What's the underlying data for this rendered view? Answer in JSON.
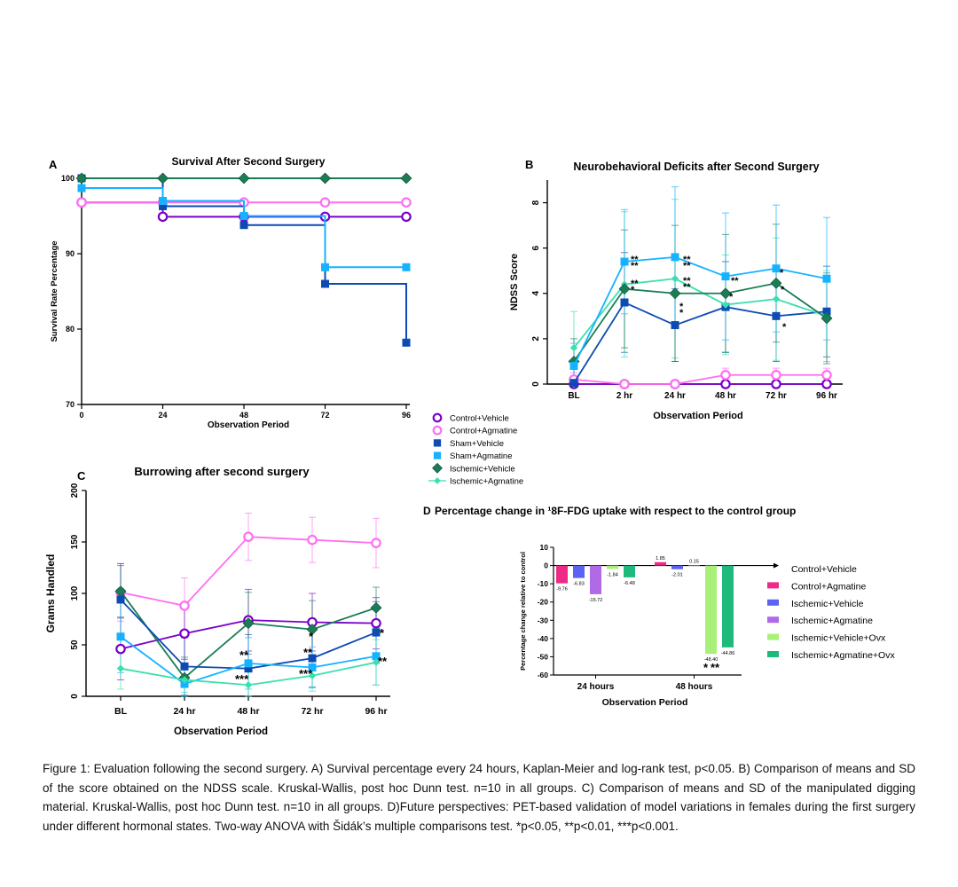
{
  "colors": {
    "control_vehicle": "#7a00c8",
    "control_agmatine": "#ff6ef2",
    "sham_vehicle": "#0d4bb3",
    "sham_agmatine": "#16b2ff",
    "ischemic_vehicle": "#1a7d55",
    "ischemic_agmatine": "#39e0b0",
    "sig_purple": "#9c27b0",
    "sig_pink": "#ff63e6",
    "d_control_agmatine": "#ee2a86",
    "d_ischemic_vehicle": "#5b63f0",
    "d_ischemic_agmatine": "#b16ae6",
    "d_ischemic_vehicle_ovx": "#a8f07a",
    "d_ischemic_agmatine_ovx": "#20b97c"
  },
  "legend": {
    "items": [
      {
        "label": "Control+Vehicle",
        "marker": "circle-open",
        "color": "#7a00c8"
      },
      {
        "label": "Control+Agmatine",
        "marker": "circle-open",
        "color": "#ff6ef2"
      },
      {
        "label": "Sham+Vehicle",
        "marker": "square",
        "color": "#0d4bb3"
      },
      {
        "label": "Sham+Agmatine",
        "marker": "square",
        "color": "#16b2ff"
      },
      {
        "label": "Ischemic+Vehicle",
        "marker": "diamond",
        "color": "#1a7d55"
      },
      {
        "label": "Ischemic+Agmatine",
        "marker": "diamond-small",
        "color": "#39e0b0"
      }
    ]
  },
  "panel_a": {
    "letter": "A",
    "title": "Survival After Second Surgery",
    "ylabel": "Survival Rate Percentage",
    "xlabel": "Observation Period",
    "yticks": [
      "70",
      "80",
      "90",
      "100"
    ],
    "xticks": [
      "0",
      "24",
      "48",
      "72",
      "96"
    ]
  },
  "panel_b": {
    "letter": "B",
    "title": "Neurobehavioral Deficits after Second Surgery",
    "ylabel": "NDSS Score",
    "xlabel": "Observation Period",
    "yticks": [
      "0",
      "2",
      "4",
      "6",
      "8"
    ],
    "xticks": [
      "BL",
      "2 hr",
      "24 hr",
      "48 hr",
      "72 hr",
      "96 hr"
    ]
  },
  "panel_c": {
    "letter": "C",
    "title": "Burrowing after second surgery",
    "ylabel": "Grams Handled",
    "xlabel": "Observation Period",
    "yticks": [
      "0",
      "50",
      "100",
      "150",
      "200"
    ],
    "xticks": [
      "BL",
      "24 hr",
      "48 hr",
      "72 hr",
      "96 hr"
    ]
  },
  "panel_d": {
    "letter": "D",
    "title": "Percentage change in ¹8F-FDG uptake with respect to the control group",
    "ylabel": "Percentage change relative to control",
    "xlabel": "Observation Period",
    "yticks": [
      "10",
      "0",
      "-10",
      "-20",
      "-30",
      "-40",
      "-50",
      "-60"
    ],
    "xticks": [
      "24 hours",
      "48 hours"
    ],
    "legend": [
      {
        "label": "Control+Vehicle",
        "swatch": "arrow"
      },
      {
        "label": "Control+Agmatine",
        "color": "#ee2a86"
      },
      {
        "label": "Ischemic+Vehicle",
        "color": "#5b63f0"
      },
      {
        "label": "Ischemic+Agmatine",
        "color": "#b16ae6"
      },
      {
        "label": "Ischemic+Vehicle+Ovx",
        "color": "#a8f07a"
      },
      {
        "label": "Ischemic+Agmatine+Ovx",
        "color": "#20b97c"
      }
    ]
  },
  "chart_data": [
    {
      "type": "line",
      "panel": "A",
      "title": "Survival After Second Surgery",
      "xlabel": "Observation Period",
      "ylabel": "Survival Rate Percentage",
      "xlim": [
        0,
        96
      ],
      "ylim": [
        70,
        100
      ],
      "step": true,
      "series": [
        {
          "name": "Ischemic+Vehicle",
          "x": [
            0,
            24,
            48,
            72,
            96
          ],
          "y": [
            100,
            100,
            100,
            100,
            100
          ]
        },
        {
          "name": "Ischemic+Agmatine",
          "x": [
            0,
            24,
            48,
            72,
            96
          ],
          "y": [
            100,
            100,
            100,
            100,
            100
          ]
        },
        {
          "name": "Sham+Agmatine",
          "x": [
            0,
            24,
            48,
            72,
            96
          ],
          "y": [
            98.7,
            97,
            95,
            88.2,
            88.2
          ]
        },
        {
          "name": "Sham+Vehicle",
          "x": [
            0,
            24,
            48,
            72,
            96
          ],
          "y": [
            100,
            96.3,
            93.8,
            86,
            78.2
          ]
        },
        {
          "name": "Control+Agmatine",
          "x": [
            0,
            24,
            48,
            72,
            96
          ],
          "y": [
            96.8,
            96.8,
            96.8,
            96.8,
            96.8
          ]
        },
        {
          "name": "Control+Vehicle",
          "x": [
            0,
            24,
            48,
            72,
            96
          ],
          "y": [
            96.8,
            94.9,
            94.9,
            94.9,
            94.9
          ]
        }
      ]
    },
    {
      "type": "line",
      "panel": "B",
      "title": "Neurobehavioral Deficits after Second Surgery",
      "xlabel": "Observation Period",
      "ylabel": "NDSS Score",
      "categories": [
        "BL",
        "2 hr",
        "24 hr",
        "48 hr",
        "72 hr",
        "96 hr"
      ],
      "ylim": [
        0,
        9
      ],
      "series": [
        {
          "name": "Control+Vehicle",
          "values": [
            0,
            0,
            0,
            0,
            0,
            0
          ],
          "sd": [
            0.2,
            0,
            0,
            0,
            0,
            0
          ]
        },
        {
          "name": "Control+Agmatine",
          "values": [
            0.2,
            0,
            0,
            0.4,
            0.4,
            0.4
          ],
          "sd": [
            0.3,
            0,
            0,
            0.3,
            0.3,
            0.3
          ]
        },
        {
          "name": "Sham+Vehicle",
          "values": [
            0.05,
            3.6,
            2.6,
            3.4,
            3.0,
            3.2
          ],
          "sd": [
            0.3,
            2.2,
            1.6,
            2.0,
            2.0,
            2.0
          ]
        },
        {
          "name": "Sham+Agmatine",
          "values": [
            0.8,
            5.4,
            5.6,
            4.75,
            5.1,
            4.65
          ],
          "sd": [
            1.0,
            2.3,
            3.1,
            2.8,
            2.8,
            2.7
          ]
        },
        {
          "name": "Ischemic+Vehicle",
          "values": [
            1.0,
            4.2,
            4.0,
            4.0,
            4.45,
            2.9
          ],
          "sd": [
            1.0,
            2.6,
            3.0,
            2.6,
            2.6,
            2.0
          ]
        },
        {
          "name": "Ischemic+Agmatine",
          "values": [
            1.6,
            4.4,
            4.65,
            3.5,
            3.75,
            3.0
          ],
          "sd": [
            1.6,
            3.2,
            3.5,
            2.2,
            2.7,
            2.0
          ]
        }
      ]
    },
    {
      "type": "line",
      "panel": "C",
      "title": "Burrowing after second surgery",
      "xlabel": "Observation Period",
      "ylabel": "Grams Handled",
      "categories": [
        "BL",
        "24 hr",
        "48 hr",
        "72 hr",
        "96 hr"
      ],
      "ylim": [
        0,
        200
      ],
      "series": [
        {
          "name": "Control+Vehicle",
          "values": [
            46,
            61,
            74,
            72,
            71
          ],
          "sd": [
            30,
            25,
            30,
            28,
            25
          ]
        },
        {
          "name": "Control+Agmatine",
          "values": [
            101,
            88,
            155,
            152,
            149
          ],
          "sd": [
            28,
            27,
            23,
            22,
            24
          ]
        },
        {
          "name": "Sham+Vehicle",
          "values": [
            94,
            29,
            27,
            37,
            62
          ],
          "sd": [
            35,
            28,
            33,
            28,
            30
          ]
        },
        {
          "name": "Sham+Agmatine",
          "values": [
            58,
            12,
            32,
            28,
            39
          ],
          "sd": [
            35,
            15,
            25,
            20,
            28
          ]
        },
        {
          "name": "Ischemic+Vehicle",
          "values": [
            102,
            18,
            71,
            65,
            86
          ],
          "sd": [
            25,
            20,
            30,
            28,
            20
          ]
        },
        {
          "name": "Ischemic+Agmatine",
          "values": [
            27,
            16,
            11,
            20,
            33
          ],
          "sd": [
            20,
            12,
            15,
            15,
            22
          ]
        }
      ],
      "significance": [
        {
          "category": "48 hr",
          "text": "**",
          "color": "#ff63e6"
        },
        {
          "category": "48 hr",
          "text": "***",
          "color": "#ff63e6"
        },
        {
          "category": "72 hr",
          "text": "*",
          "color": "#ff63e6"
        },
        {
          "category": "72 hr",
          "text": "**",
          "color": "#ff63e6"
        },
        {
          "category": "72 hr",
          "text": "***",
          "color": "#ff63e6"
        },
        {
          "category": "96 hr",
          "text": "*",
          "color": "#ff63e6"
        },
        {
          "category": "96 hr",
          "text": "**",
          "color": "#ff63e6"
        }
      ]
    },
    {
      "type": "bar",
      "panel": "D",
      "title": "Percentage change in ¹8F-FDG uptake with respect to the control group",
      "xlabel": "Observation Period",
      "ylabel": "Percentage change relative to control",
      "categories": [
        "24 hours",
        "48 hours"
      ],
      "ylim": [
        -60,
        10
      ],
      "series": [
        {
          "name": "Control+Agmatine",
          "values": [
            -9.76,
            1.85
          ],
          "labels": [
            "-9.76",
            "1.85"
          ]
        },
        {
          "name": "Ischemic+Vehícle",
          "values": [
            -6.83,
            -2.01
          ],
          "labels": [
            "-6.83",
            "-2.01"
          ]
        },
        {
          "name": "Ischemic+Agmatine",
          "values": [
            -15.72,
            0.15
          ],
          "labels": [
            "-15.72",
            "0.15"
          ]
        },
        {
          "name": "Ischemic+Vehícle+Ovx",
          "values": [
            -1.84,
            -48.4
          ],
          "labels": [
            "-1.84",
            "-48.40"
          ]
        },
        {
          "name": "Ischemic+Agmatine+Ovx",
          "values": [
            -6.48,
            -44.86
          ],
          "labels": [
            "-6.48",
            "-44.86"
          ]
        }
      ],
      "significance": [
        {
          "category": "48 hours",
          "text": "*",
          "color": "#000000"
        },
        {
          "category": "48 hours",
          "text": "**",
          "color": "#ff63e6"
        }
      ]
    }
  ],
  "caption": {
    "text": "Figure 1: Evaluation following the second surgery. A) Survival percentage every 24 hours, Kaplan-Meier and log-rank test, p<0.05. B) Comparison of means and SD of the score obtained on the NDSS scale. Kruskal-Wallis, post hoc Dunn test. n=10 in all groups. C) Comparison of means and SD of the manipulated digging material. Kruskal-Wallis, post hoc Dunn test. n=10 in all groups. D)Future perspectives: PET-based validation of model variations in females during the first surgery under different hormonal states. Two-way ANOVA with Šidák’s multiple comparisons test.  *p<0.05, **p<0.01, ***p<0.001."
  }
}
